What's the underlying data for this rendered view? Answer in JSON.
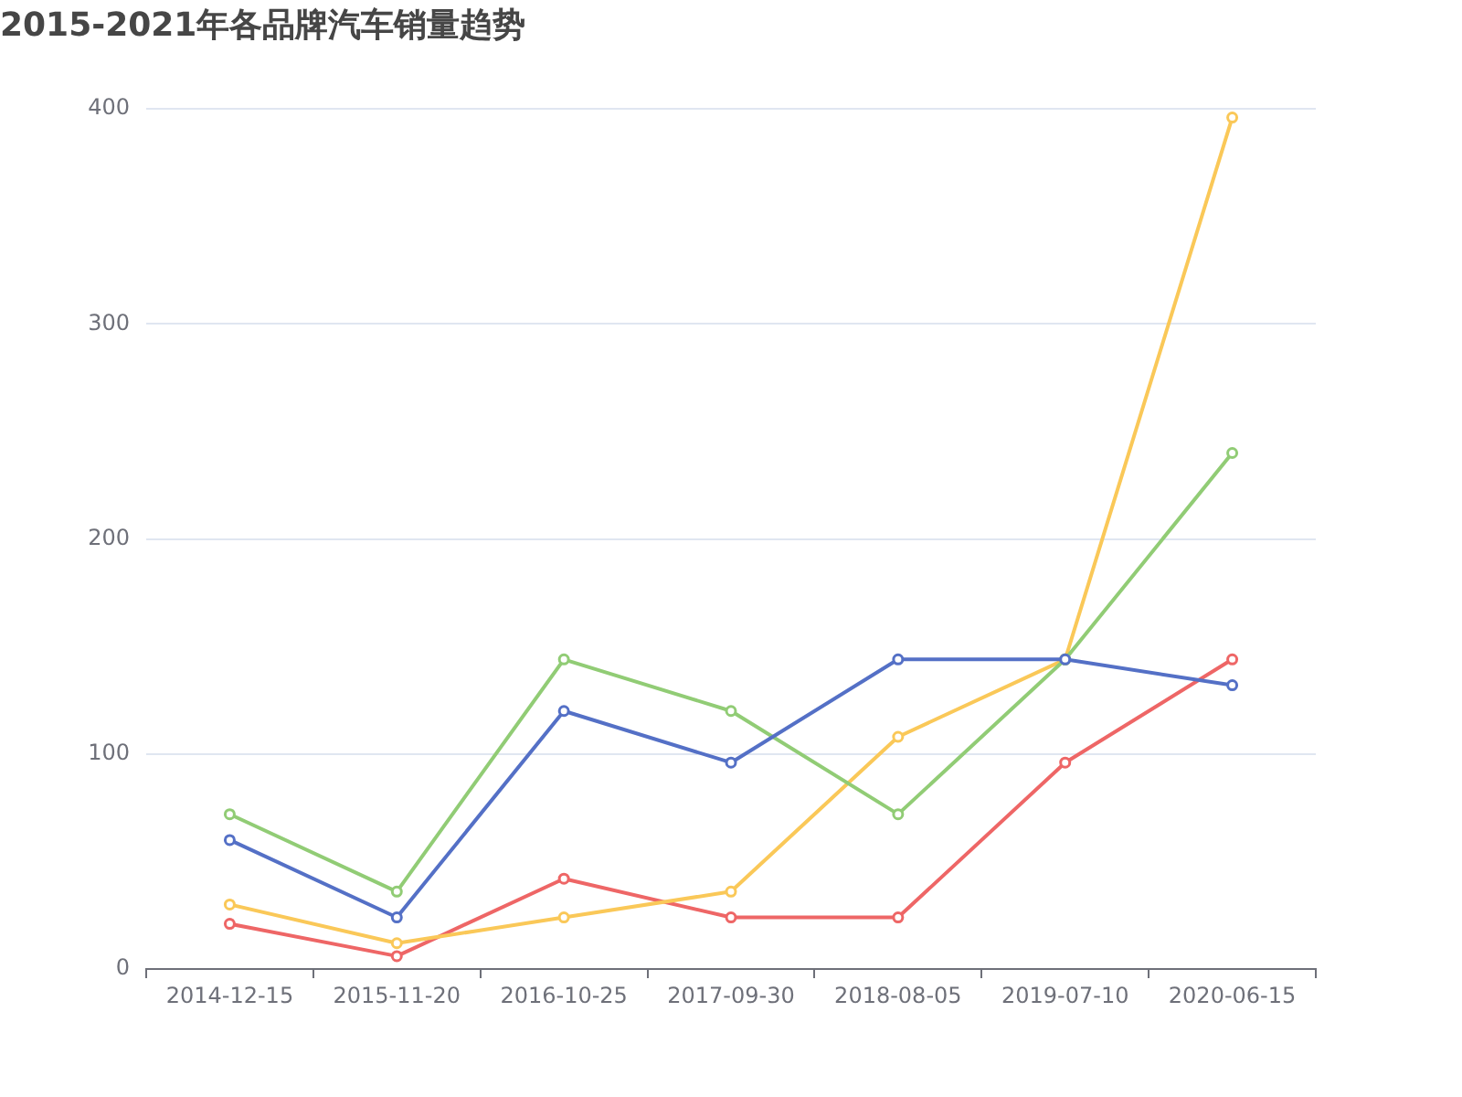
{
  "chart_data": {
    "type": "line",
    "title": "2015-2021年各品牌汽车销量趋势",
    "categories": [
      "2014-12-15",
      "2015-11-20",
      "2016-10-25",
      "2017-09-30",
      "2018-08-05",
      "2019-07-10",
      "2020-06-15"
    ],
    "series": [
      {
        "color": "#5470c6",
        "values": [
          60,
          24,
          120,
          96,
          144,
          144,
          132
        ]
      },
      {
        "color": "#91cc75",
        "values": [
          72,
          36,
          144,
          120,
          72,
          144,
          240
        ]
      },
      {
        "color": "#fac858",
        "values": [
          30,
          12,
          24,
          36,
          108,
          144,
          396
        ]
      },
      {
        "color": "#ee6666",
        "values": [
          21,
          6,
          42,
          24,
          24,
          96,
          144
        ]
      }
    ],
    "ylim": [
      0,
      400
    ],
    "yticks": [
      0,
      100,
      200,
      300,
      400
    ],
    "grid": "y",
    "legend": false,
    "marker": "circle",
    "line_style": "solid"
  }
}
